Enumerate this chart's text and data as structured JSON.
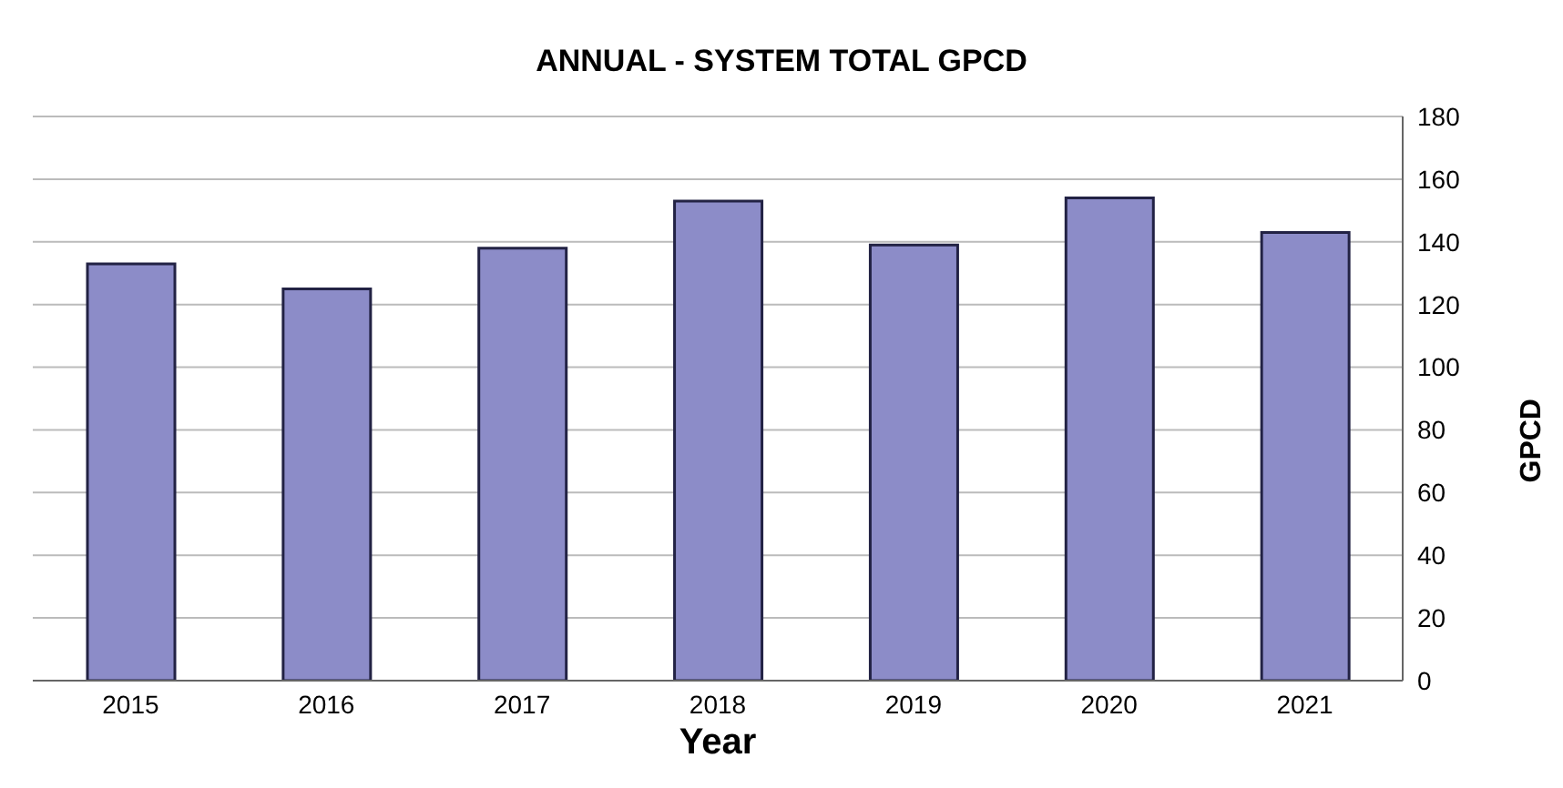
{
  "chart_data": {
    "type": "bar",
    "title": "ANNUAL - SYSTEM TOTAL GPCD",
    "xlabel": "Year",
    "ylabel": "GPCD",
    "categories": [
      "2015",
      "2016",
      "2017",
      "2018",
      "2019",
      "2020",
      "2021"
    ],
    "values": [
      133,
      125,
      138,
      153,
      139,
      154,
      143
    ],
    "color": "#8c8cc8",
    "ylim": [
      0,
      180
    ],
    "yticks": [
      0,
      20,
      40,
      60,
      80,
      100,
      120,
      140,
      160,
      180
    ],
    "grid": "y"
  }
}
